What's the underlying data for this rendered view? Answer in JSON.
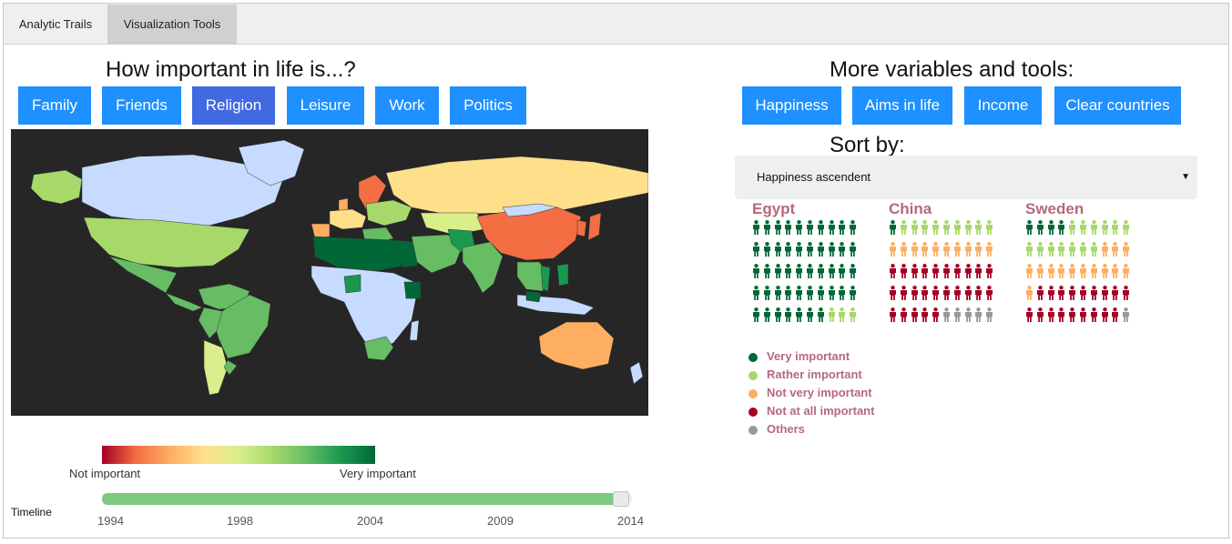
{
  "tabs": [
    {
      "label": "Analytic Trails"
    },
    {
      "label": "Visualization Tools"
    }
  ],
  "left": {
    "heading": "How important in life is...?",
    "buttons": [
      {
        "label": "Family"
      },
      {
        "label": "Friends"
      },
      {
        "label": "Religion",
        "active": true
      },
      {
        "label": "Leisure"
      },
      {
        "label": "Work"
      },
      {
        "label": "Politics"
      }
    ]
  },
  "right": {
    "heading": "More variables and tools:",
    "buttons": [
      {
        "label": "Happiness"
      },
      {
        "label": "Aims in life"
      },
      {
        "label": "Income"
      },
      {
        "label": "Clear countries"
      }
    ],
    "sort_label": "Sort by:",
    "sort_value": "Happiness ascendent"
  },
  "color_legend": {
    "low": "Not important",
    "high": "Very important"
  },
  "timeline": {
    "label": "Timeline",
    "ticks": [
      "1994",
      "1998",
      "2004",
      "2009",
      "2014"
    ],
    "selected": "2014",
    "fill_fraction": 0.98
  },
  "colors": {
    "very": "#006837",
    "rather": "#a6d96a",
    "not_very": "#fdae61",
    "not_at_all": "#a50026",
    "others": "#999999",
    "nodata": "#c6dbff",
    "mid": "#fee08b",
    "mid_green": "#66bd63",
    "orange": "#f46d43",
    "light": "#d9ef8b"
  },
  "categories": [
    {
      "key": "very",
      "label": "Very important"
    },
    {
      "key": "rather",
      "label": "Rather important"
    },
    {
      "key": "not_very",
      "label": "Not very important"
    },
    {
      "key": "not_at_all",
      "label": "Not at all important"
    },
    {
      "key": "others",
      "label": "Others"
    }
  ],
  "countries": [
    {
      "name": "Egypt",
      "counts": {
        "very": 47,
        "rather": 3,
        "not_very": 0,
        "not_at_all": 0,
        "others": 0
      }
    },
    {
      "name": "China",
      "counts": {
        "very": 1,
        "rather": 9,
        "not_very": 10,
        "not_at_all": 25,
        "others": 5
      }
    },
    {
      "name": "Sweden",
      "counts": {
        "very": 4,
        "rather": 13,
        "not_very": 14,
        "not_at_all": 18,
        "others": 1
      }
    }
  ]
}
